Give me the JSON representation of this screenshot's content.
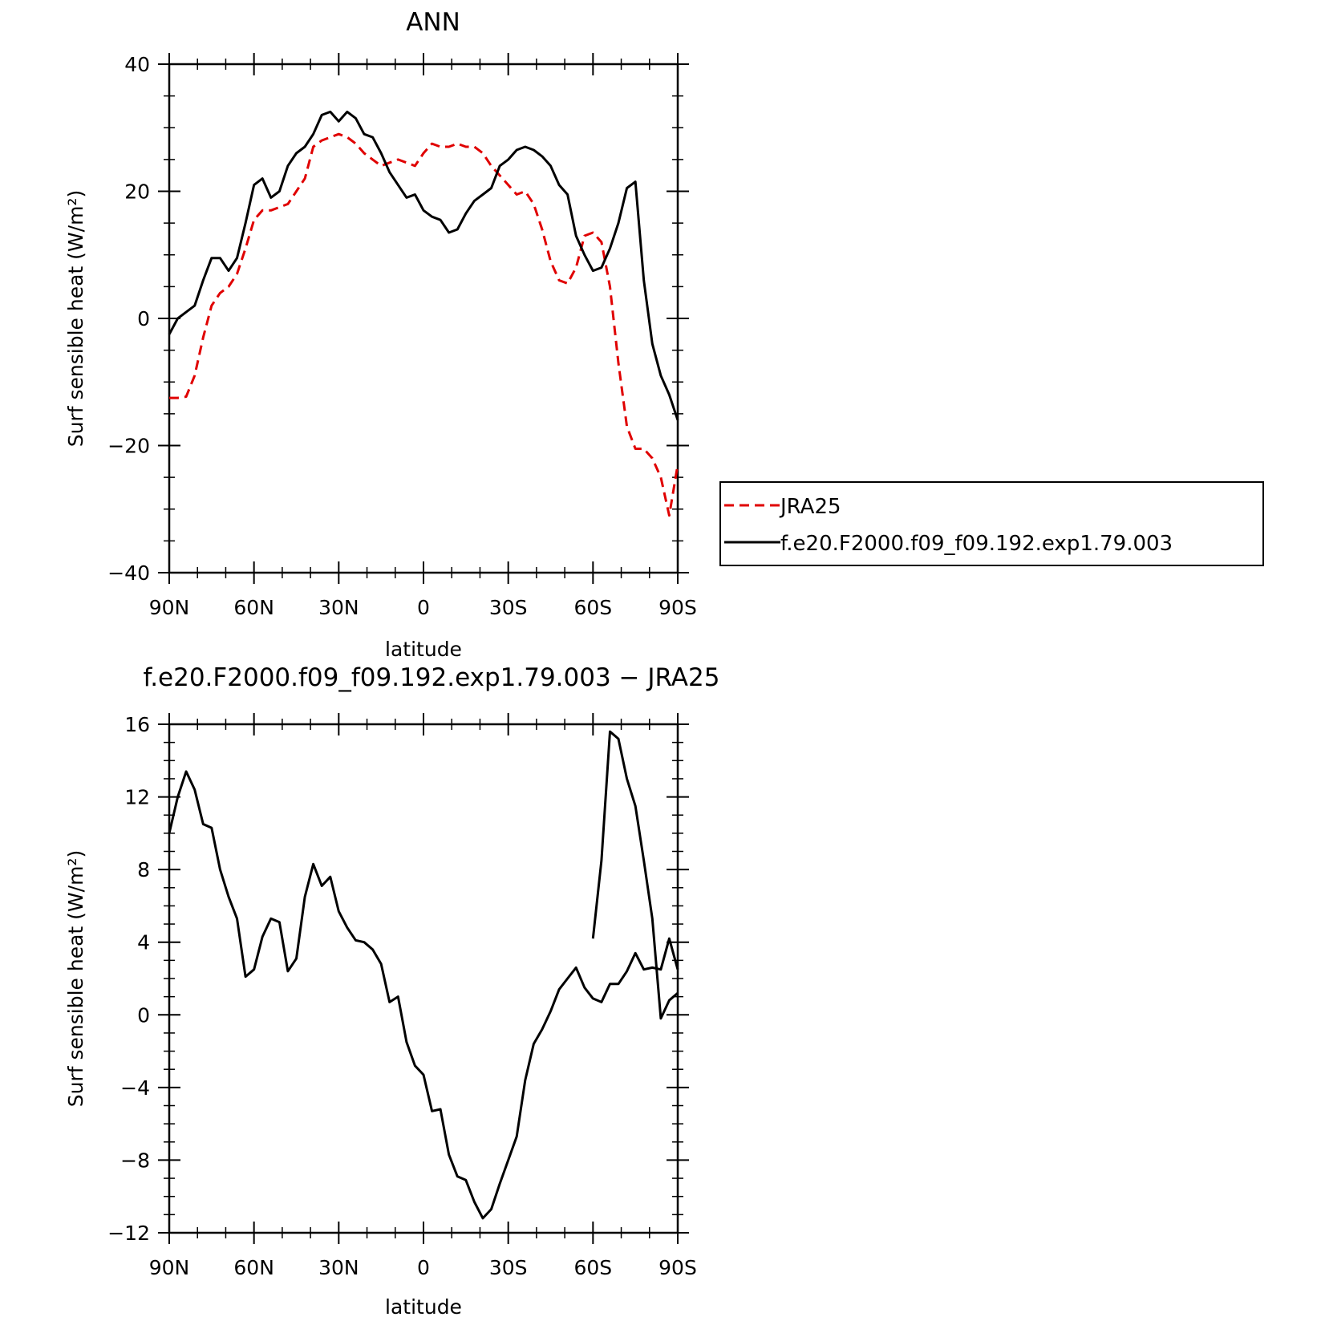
{
  "chart_data": [
    {
      "type": "line",
      "title": "ANN",
      "xlabel": "latitude",
      "ylabel": "Surf sensible heat (W/m²)",
      "ylim": [
        -40,
        40
      ],
      "xlim": [
        90,
        -90
      ],
      "x_ticks": [
        {
          "value": 90,
          "label": "90N"
        },
        {
          "value": 60,
          "label": "60N"
        },
        {
          "value": 30,
          "label": "30N"
        },
        {
          "value": 0,
          "label": "0"
        },
        {
          "value": -30,
          "label": "30S"
        },
        {
          "value": -60,
          "label": "60S"
        },
        {
          "value": -90,
          "label": "90S"
        }
      ],
      "y_ticks": [
        {
          "value": 40,
          "label": "40"
        },
        {
          "value": 20,
          "label": "20"
        },
        {
          "value": 0,
          "label": "0"
        },
        {
          "value": -20,
          "label": "−20"
        },
        {
          "value": -40,
          "label": "−40"
        }
      ],
      "legend": {
        "position": "right"
      },
      "series": [
        {
          "name": "JRA25",
          "color": "#e00000",
          "dash": "dashed",
          "x": [
            90,
            87,
            84,
            81,
            78,
            75,
            72,
            69,
            66,
            63,
            60,
            57,
            54,
            51,
            48,
            45,
            42,
            39,
            36,
            33,
            30,
            27,
            24,
            21,
            18,
            15,
            12,
            9,
            6,
            3,
            0,
            -3,
            -6,
            -9,
            -12,
            -15,
            -18,
            -21,
            -24,
            -27,
            -30,
            -33,
            -36,
            -39,
            -42,
            -45,
            -48,
            -51,
            -54,
            -57,
            -60,
            -63,
            -66,
            -69,
            -72,
            -75,
            -78,
            -81,
            -84,
            -87,
            -90
          ],
          "y": [
            -12.5,
            -12.5,
            -12.3,
            -9,
            -3,
            2,
            4,
            5,
            7,
            11,
            15.5,
            17,
            17,
            17.5,
            18,
            20,
            22,
            27,
            28,
            28.5,
            29,
            28.5,
            27.5,
            26,
            25,
            24,
            24.5,
            25,
            24.5,
            24,
            26,
            27.5,
            27,
            27,
            27.5,
            27,
            27,
            26,
            24,
            22.5,
            21,
            19.5,
            20,
            18,
            14,
            9,
            6,
            5.5,
            8,
            13,
            13.5,
            12,
            5,
            -7,
            -17,
            -20.5,
            -20.5,
            -22,
            -25,
            -31,
            -23
          ]
        },
        {
          "name": "f.e20.F2000.f09_f09.192.exp1.79.003",
          "color": "#000000",
          "dash": "solid",
          "x": [
            90,
            87,
            84,
            81,
            78,
            75,
            72,
            69,
            66,
            63,
            60,
            57,
            54,
            51,
            48,
            45,
            42,
            39,
            36,
            33,
            30,
            27,
            24,
            21,
            18,
            15,
            12,
            9,
            6,
            3,
            0,
            -3,
            -6,
            -9,
            -12,
            -15,
            -18,
            -21,
            -24,
            -27,
            -30,
            -33,
            -36,
            -39,
            -42,
            -45,
            -48,
            -51,
            -54,
            -57,
            -60,
            -63,
            -66,
            -69,
            -72,
            -75,
            -78,
            -81,
            -84,
            -87,
            -90
          ],
          "y": [
            -2.5,
            0,
            1,
            2,
            6,
            9.5,
            9.5,
            7.5,
            9.5,
            15,
            21,
            22,
            19,
            20,
            24,
            26,
            27,
            29,
            32,
            32.5,
            31,
            32.5,
            31.5,
            29,
            28.5,
            26,
            23,
            21,
            19,
            19.5,
            17,
            16,
            15.5,
            13.5,
            14,
            16.5,
            18.5,
            19.5,
            20.5,
            24,
            25,
            26.5,
            27,
            26.5,
            25.5,
            24,
            21,
            19.5,
            13,
            10,
            7.5,
            8,
            11,
            15,
            20.5,
            21.5,
            6,
            -4,
            -9,
            -12,
            -16
          ]
        }
      ]
    },
    {
      "type": "line",
      "title": "f.e20.F2000.f09_f09.192.exp1.79.003 − JRA25",
      "xlabel": "latitude",
      "ylabel": "Surf sensible heat (W/m²)",
      "ylim": [
        -12,
        16
      ],
      "xlim": [
        90,
        -90
      ],
      "x_ticks": [
        {
          "value": 90,
          "label": "90N"
        },
        {
          "value": 60,
          "label": "60N"
        },
        {
          "value": 30,
          "label": "30N"
        },
        {
          "value": 0,
          "label": "0"
        },
        {
          "value": -30,
          "label": "30S"
        },
        {
          "value": -60,
          "label": "60S"
        },
        {
          "value": -90,
          "label": "90S"
        }
      ],
      "y_ticks": [
        {
          "value": 16,
          "label": "16"
        },
        {
          "value": 12,
          "label": "12"
        },
        {
          "value": 8,
          "label": "8"
        },
        {
          "value": 4,
          "label": "4"
        },
        {
          "value": 0,
          "label": "0"
        },
        {
          "value": -4,
          "label": "−4"
        },
        {
          "value": -8,
          "label": "−8"
        },
        {
          "value": -12,
          "label": "−12"
        }
      ],
      "series": [
        {
          "color": "#000000",
          "dash": "solid",
          "x": [
            90,
            87,
            84,
            81,
            78,
            75,
            72,
            69,
            66,
            63,
            60,
            57,
            54,
            51,
            48,
            45,
            42,
            39,
            36,
            33,
            30,
            27,
            24,
            21,
            18,
            15,
            12,
            9,
            6,
            3,
            0,
            -3,
            -6,
            -9,
            -12,
            -15,
            -18,
            -21,
            -24,
            -27,
            -30,
            -33,
            -36,
            -39,
            -42,
            -45,
            -48,
            -51,
            -54,
            -57,
            -60,
            -63,
            -66,
            -69,
            -72,
            -75,
            -78,
            -81,
            -84,
            -87,
            -90
          ],
          "y": [
            10,
            12,
            13.4,
            12.4,
            10.5,
            10.3,
            8,
            6.5,
            5.3,
            2.1,
            2.5,
            4.3,
            5.3,
            5.1,
            2.4,
            3.1,
            6.5,
            8.3,
            7.1,
            7.6,
            5.7,
            4.8,
            4.1,
            4,
            3.6,
            2.8,
            0.7,
            1,
            -1.5,
            -2.8,
            -3.3,
            -5.3,
            -5.2,
            -7.7,
            -8.9,
            -9.1,
            -10.3,
            -11.2,
            -10.7,
            -9.3,
            -8,
            -6.7,
            -3.6,
            -1.6,
            -0.8,
            0.2,
            1.4,
            2,
            2.6,
            1.5,
            0.9,
            0.7,
            1.7,
            1.7,
            2.4,
            3.4,
            2.5,
            2.6,
            2.5,
            4.2,
            2.5
          ]
        },
        {
          "color": "#000000",
          "dash": "solid",
          "x": [
            -60,
            -63,
            -66,
            -69,
            -72,
            -75,
            -78,
            -81,
            -84,
            -87,
            -90
          ],
          "y": [
            4.2,
            8.5,
            15.6,
            15.2,
            13,
            11.5,
            8.5,
            5.3,
            -0.2,
            0.8,
            1.2
          ]
        }
      ]
    }
  ],
  "legend_entries": [
    "JRA25",
    "f.e20.F2000.f09_f09.192.exp1.79.003"
  ]
}
